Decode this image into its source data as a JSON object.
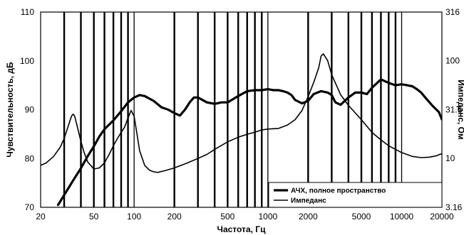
{
  "chart_data": {
    "type": "line",
    "xlabel": "Частота, Гц",
    "ylabel": "Чувствительность, дБ",
    "y2label": "Импеданс, Ом",
    "x_scale": "log",
    "xlim": [
      20,
      20000
    ],
    "ylim": [
      70,
      110
    ],
    "y2lim": [
      3.16,
      316
    ],
    "y2_scale": "log",
    "grid": "vertical",
    "legend_position": "bottom-right",
    "x_tick_labels": [
      "20",
      "50",
      "100",
      "200",
      "500",
      "1000",
      "2000",
      "5000",
      "10000",
      "20000"
    ],
    "y_tick_labels": [
      "110",
      "100",
      "90",
      "80",
      "70"
    ],
    "y2_tick_labels": [
      "316",
      "100",
      "31.6",
      "10",
      "3.16"
    ],
    "x_ticks": [
      20,
      50,
      100,
      200,
      500,
      1000,
      2000,
      5000,
      10000,
      20000
    ],
    "y_ticks": [
      110,
      100,
      90,
      80,
      70
    ],
    "y2_ticks": [
      316,
      100,
      31.6,
      10,
      3.16
    ],
    "series": [
      {
        "name": "АЧХ, полное пространство",
        "axis": "left",
        "style": "thick",
        "x": [
          27,
          30,
          35,
          40,
          45,
          50,
          55,
          60,
          70,
          80,
          90,
          100,
          110,
          120,
          140,
          160,
          180,
          200,
          220,
          240,
          260,
          280,
          300,
          350,
          400,
          450,
          500,
          600,
          700,
          800,
          900,
          1000,
          1100,
          1200,
          1300,
          1400,
          1500,
          1600,
          1800,
          2000,
          2200,
          2500,
          2800,
          3000,
          3200,
          3500,
          4000,
          4500,
          5000,
          5500,
          6000,
          7000,
          8000,
          9000,
          10000,
          11000,
          12000,
          13000,
          14000,
          15000,
          17000,
          19000,
          20000
        ],
        "y": [
          70.5,
          72.5,
          75.5,
          78,
          80.5,
          82.5,
          84.5,
          86,
          87.8,
          89.7,
          91.5,
          92.5,
          93,
          92.8,
          91.8,
          90.5,
          90,
          89.3,
          88.8,
          90,
          91.5,
          92.5,
          92.5,
          91.5,
          91.2,
          91.5,
          91.5,
          92.8,
          93.8,
          94,
          94,
          94.2,
          94,
          94,
          93.8,
          93.5,
          93,
          92,
          91.3,
          91.8,
          93.2,
          93.8,
          93.5,
          93,
          91.5,
          91,
          92.5,
          93.5,
          93.5,
          93.2,
          94.5,
          96.2,
          95.5,
          95,
          95.2,
          95,
          94.8,
          94.2,
          93.5,
          92.5,
          90.8,
          89.5,
          88
        ]
      },
      {
        "name": "Импеданс",
        "axis": "right",
        "style": "thin",
        "x": [
          20,
          22,
          25,
          28,
          30,
          32,
          34,
          35,
          36,
          38,
          40,
          42,
          45,
          50,
          55,
          60,
          65,
          70,
          75,
          80,
          85,
          90,
          95,
          100,
          105,
          110,
          120,
          130,
          140,
          150,
          170,
          200,
          250,
          300,
          350,
          400,
          450,
          500,
          600,
          700,
          800,
          900,
          1000,
          1200,
          1400,
          1600,
          1800,
          2000,
          2200,
          2400,
          2500,
          2600,
          2800,
          3000,
          3500,
          4000,
          5000,
          6000,
          7000,
          8000,
          10000,
          12000,
          14000,
          16000,
          18000,
          20000
        ],
        "y": [
          8.5,
          9,
          10.5,
          13,
          16,
          21,
          27,
          28.5,
          27,
          20,
          15,
          11.8,
          9.2,
          7.8,
          8,
          9,
          11,
          13.5,
          16,
          18.5,
          21,
          26,
          31,
          27,
          18,
          12,
          8.5,
          7.6,
          7.3,
          7.2,
          7.5,
          8,
          9,
          10,
          11,
          12.4,
          13.6,
          14.8,
          16.5,
          17.7,
          18.6,
          19.6,
          20,
          20.3,
          22,
          25,
          31,
          43,
          60,
          85,
          112,
          118,
          100,
          72,
          45,
          35,
          25,
          18.5,
          15.5,
          13.5,
          11.5,
          10.5,
          10.2,
          10.3,
          10.6,
          11.2
        ]
      }
    ]
  }
}
